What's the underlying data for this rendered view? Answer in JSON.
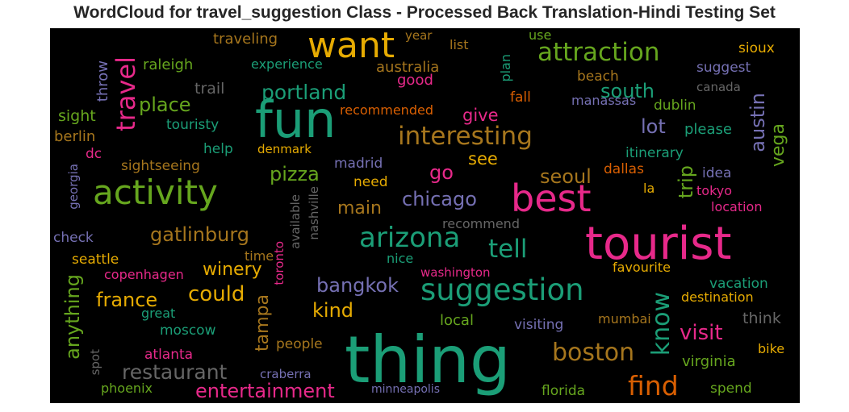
{
  "title": "WordCloud for travel_suggestion Class - Processed Back Translation-Hindi Testing Set",
  "colors": {
    "background": "#000000",
    "palette": {
      "teal": "#1b9e77",
      "orange": "#d95f02",
      "purple": "#7570b3",
      "pink": "#e7298a",
      "green": "#66a61e",
      "gold": "#e6ab02",
      "brown": "#a6761d",
      "grey": "#666666"
    }
  },
  "words": [
    {
      "text": "thing",
      "color": "teal",
      "weight": 100
    },
    {
      "text": "tourist",
      "color": "pink",
      "weight": 88
    },
    {
      "text": "fun",
      "color": "teal",
      "weight": 85
    },
    {
      "text": "best",
      "color": "pink",
      "weight": 72
    },
    {
      "text": "activity",
      "color": "green",
      "weight": 70
    },
    {
      "text": "want",
      "color": "gold",
      "weight": 62
    },
    {
      "text": "suggestion",
      "color": "teal",
      "weight": 58
    },
    {
      "text": "arizona",
      "color": "teal",
      "weight": 56
    },
    {
      "text": "attraction",
      "color": "green",
      "weight": 50
    },
    {
      "text": "interesting",
      "color": "brown",
      "weight": 49
    },
    {
      "text": "travel",
      "color": "pink",
      "weight": 47
    },
    {
      "text": "boston",
      "color": "brown",
      "weight": 45
    },
    {
      "text": "find",
      "color": "orange",
      "weight": 44
    },
    {
      "text": "tell",
      "color": "teal",
      "weight": 44
    },
    {
      "text": "know",
      "color": "teal",
      "weight": 42
    },
    {
      "text": "restaurant",
      "color": "grey",
      "weight": 40
    },
    {
      "text": "entertainment",
      "color": "pink",
      "weight": 37
    },
    {
      "text": "portland",
      "color": "teal",
      "weight": 37
    },
    {
      "text": "austin",
      "color": "purple",
      "weight": 35
    },
    {
      "text": "anything",
      "color": "green",
      "weight": 35
    },
    {
      "text": "could",
      "color": "gold",
      "weight": 35
    },
    {
      "text": "gatlinburg",
      "color": "brown",
      "weight": 34
    },
    {
      "text": "chicago",
      "color": "purple",
      "weight": 34
    },
    {
      "text": "place",
      "color": "green",
      "weight": 34
    },
    {
      "text": "south",
      "color": "teal",
      "weight": 34
    },
    {
      "text": "visit",
      "color": "pink",
      "weight": 34
    },
    {
      "text": "bangkok",
      "color": "purple",
      "weight": 33
    },
    {
      "text": "trip",
      "color": "green",
      "weight": 33
    },
    {
      "text": "tampa",
      "color": "brown",
      "weight": 32
    },
    {
      "text": "seoul",
      "color": "brown",
      "weight": 32
    },
    {
      "text": "pizza",
      "color": "green",
      "weight": 31
    },
    {
      "text": "vega",
      "color": "green",
      "weight": 31
    },
    {
      "text": "france",
      "color": "gold",
      "weight": 31
    },
    {
      "text": "go",
      "color": "pink",
      "weight": 31
    },
    {
      "text": "main",
      "color": "brown",
      "weight": 31
    },
    {
      "text": "kind",
      "color": "gold",
      "weight": 30
    },
    {
      "text": "winery",
      "color": "gold",
      "weight": 30
    },
    {
      "text": "lot",
      "color": "purple",
      "weight": 29
    },
    {
      "text": "see",
      "color": "gold",
      "weight": 28
    },
    {
      "text": "give",
      "color": "pink",
      "weight": 28
    },
    {
      "text": "throw",
      "color": "purple",
      "weight": 24
    },
    {
      "text": "raleigh",
      "color": "green",
      "weight": 24
    },
    {
      "text": "traveling",
      "color": "brown",
      "weight": 24
    },
    {
      "text": "experience",
      "color": "teal",
      "weight": 22
    },
    {
      "text": "australia",
      "color": "brown",
      "weight": 24
    },
    {
      "text": "year",
      "color": "brown",
      "weight": 22
    },
    {
      "text": "list",
      "color": "brown",
      "weight": 22
    },
    {
      "text": "use",
      "color": "green",
      "weight": 22
    },
    {
      "text": "sioux",
      "color": "gold",
      "weight": 23
    },
    {
      "text": "suggest",
      "color": "purple",
      "weight": 23
    },
    {
      "text": "plan",
      "color": "teal",
      "weight": 22
    },
    {
      "text": "good",
      "color": "pink",
      "weight": 23
    },
    {
      "text": "beach",
      "color": "brown",
      "weight": 23
    },
    {
      "text": "canada",
      "color": "grey",
      "weight": 21
    },
    {
      "text": "trail",
      "color": "grey",
      "weight": 24
    },
    {
      "text": "recommended",
      "color": "orange",
      "weight": 22
    },
    {
      "text": "fall",
      "color": "orange",
      "weight": 22
    },
    {
      "text": "manassas",
      "color": "purple",
      "weight": 22
    },
    {
      "text": "dublin",
      "color": "green",
      "weight": 22
    },
    {
      "text": "sight",
      "color": "green",
      "weight": 23
    },
    {
      "text": "berlin",
      "color": "brown",
      "weight": 23
    },
    {
      "text": "touristy",
      "color": "teal",
      "weight": 22
    },
    {
      "text": "please",
      "color": "teal",
      "weight": 23
    },
    {
      "text": "dc",
      "color": "pink",
      "weight": 22
    },
    {
      "text": "help",
      "color": "teal",
      "weight": 22
    },
    {
      "text": "denmark",
      "color": "gold",
      "weight": 21
    },
    {
      "text": "itinerary",
      "color": "teal",
      "weight": 23
    },
    {
      "text": "sightseeing",
      "color": "brown",
      "weight": 22
    },
    {
      "text": "madrid",
      "color": "purple",
      "weight": 22
    },
    {
      "text": "dallas",
      "color": "orange",
      "weight": 23
    },
    {
      "text": "idea",
      "color": "purple",
      "weight": 22
    },
    {
      "text": "georgia",
      "color": "purple",
      "weight": 21
    },
    {
      "text": "need",
      "color": "gold",
      "weight": 23
    },
    {
      "text": "available",
      "color": "grey",
      "weight": 21
    },
    {
      "text": "nashville",
      "color": "grey",
      "weight": 21
    },
    {
      "text": "la",
      "color": "gold",
      "weight": 22
    },
    {
      "text": "tokyo",
      "color": "pink",
      "weight": 22
    },
    {
      "text": "recommend",
      "color": "grey",
      "weight": 22
    },
    {
      "text": "location",
      "color": "pink",
      "weight": 22
    },
    {
      "text": "check",
      "color": "purple",
      "weight": 23
    },
    {
      "text": "seattle",
      "color": "gold",
      "weight": 23
    },
    {
      "text": "time",
      "color": "brown",
      "weight": 22
    },
    {
      "text": "toronto",
      "color": "pink",
      "weight": 22
    },
    {
      "text": "nice",
      "color": "teal",
      "weight": 22
    },
    {
      "text": "washington",
      "color": "pink",
      "weight": 22
    },
    {
      "text": "favourite",
      "color": "gold",
      "weight": 22
    },
    {
      "text": "copenhagen",
      "color": "pink",
      "weight": 21
    },
    {
      "text": "vacation",
      "color": "teal",
      "weight": 23
    },
    {
      "text": "destination",
      "color": "gold",
      "weight": 22
    },
    {
      "text": "great",
      "color": "teal",
      "weight": 22
    },
    {
      "text": "mumbai",
      "color": "brown",
      "weight": 22
    },
    {
      "text": "think",
      "color": "grey",
      "weight": 24
    },
    {
      "text": "moscow",
      "color": "teal",
      "weight": 23
    },
    {
      "text": "local",
      "color": "green",
      "weight": 23
    },
    {
      "text": "visiting",
      "color": "purple",
      "weight": 23
    },
    {
      "text": "spot",
      "color": "grey",
      "weight": 21
    },
    {
      "text": "people",
      "color": "brown",
      "weight": 23
    },
    {
      "text": "atlanta",
      "color": "pink",
      "weight": 23
    },
    {
      "text": "craberra",
      "color": "purple",
      "weight": 22
    },
    {
      "text": "virginia",
      "color": "green",
      "weight": 23
    },
    {
      "text": "bike",
      "color": "gold",
      "weight": 23
    },
    {
      "text": "phoenix",
      "color": "green",
      "weight": 22
    },
    {
      "text": "minneapolis",
      "color": "purple",
      "weight": 21
    },
    {
      "text": "florida",
      "color": "green",
      "weight": 23
    },
    {
      "text": "spend",
      "color": "green",
      "weight": 23
    }
  ]
}
